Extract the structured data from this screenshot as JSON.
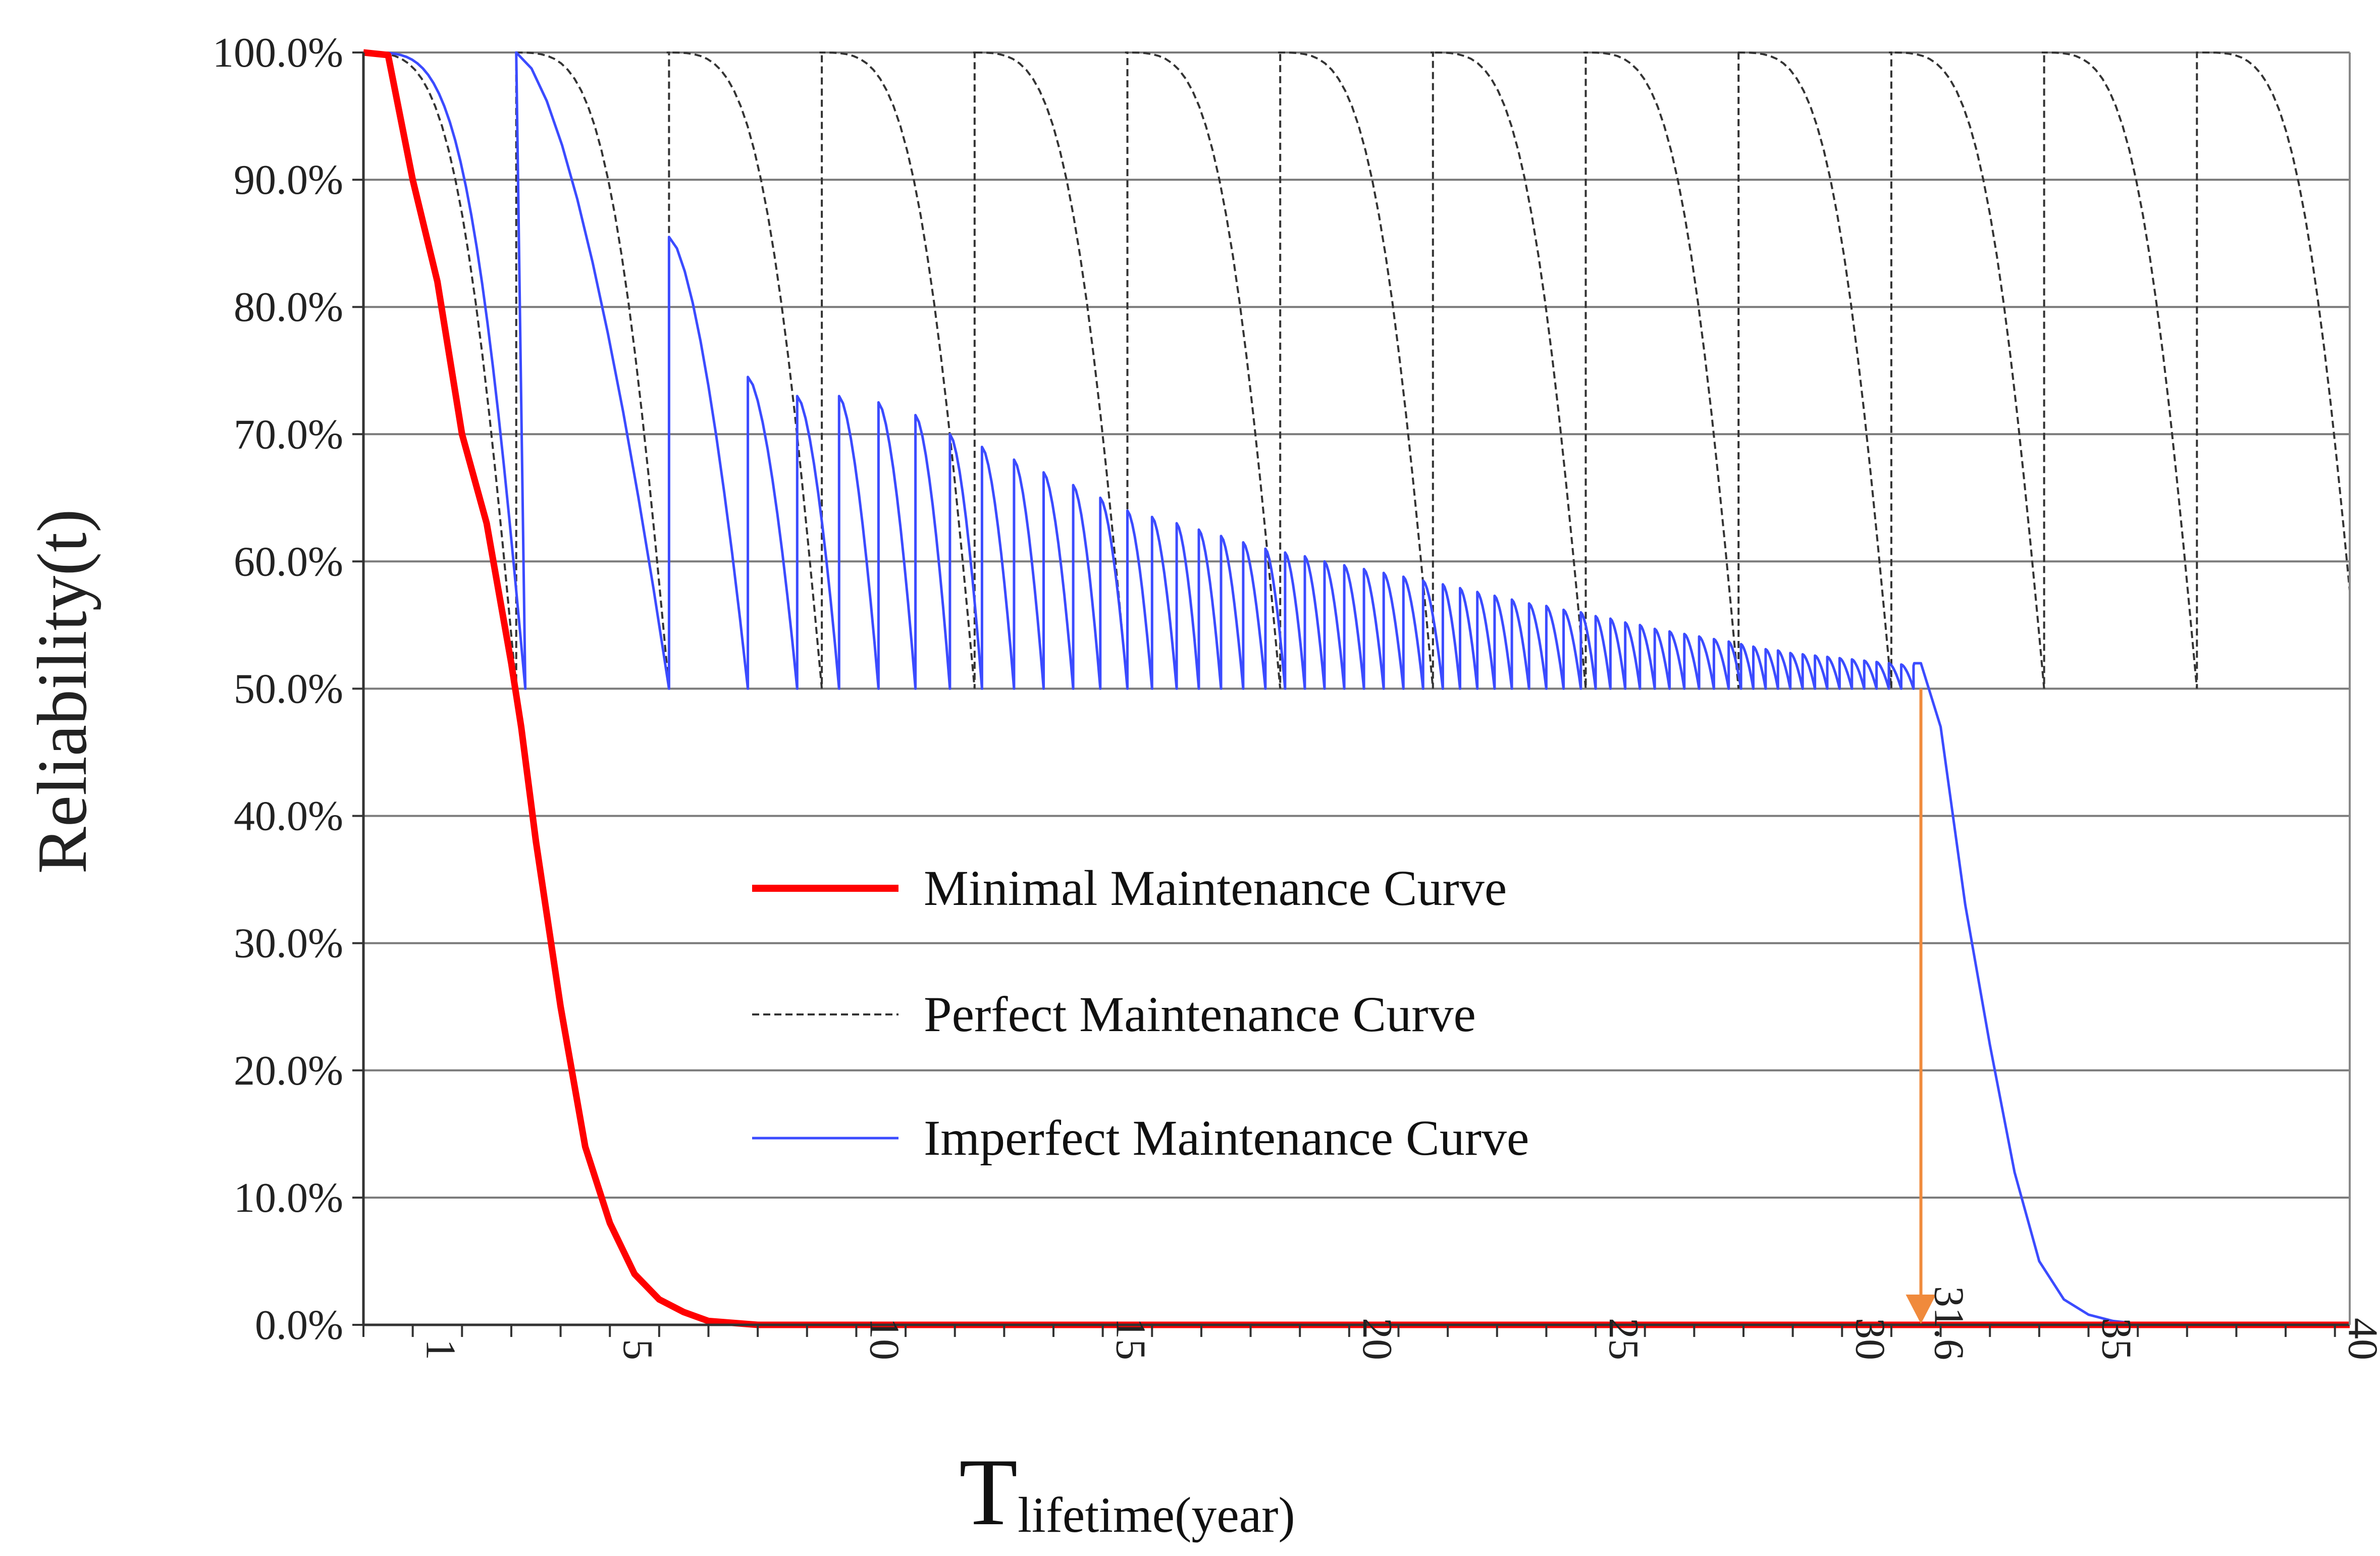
{
  "chart_data": {
    "type": "line",
    "title": "",
    "ylabel": "Reliability(t)",
    "xlabel": {
      "main": "T",
      "subscript": "lifetime",
      "suffix": "(year)"
    },
    "xlim": [
      0,
      40.3
    ],
    "ylim": [
      0,
      1
    ],
    "grid": true,
    "yticks": [
      {
        "value": 0.0,
        "label": "0.0%"
      },
      {
        "value": 0.1,
        "label": "10.0%"
      },
      {
        "value": 0.2,
        "label": "20.0%"
      },
      {
        "value": 0.3,
        "label": "30.0%"
      },
      {
        "value": 0.4,
        "label": "40.0%"
      },
      {
        "value": 0.5,
        "label": "50.0%"
      },
      {
        "value": 0.6,
        "label": "60.0%"
      },
      {
        "value": 0.7,
        "label": "70.0%"
      },
      {
        "value": 0.8,
        "label": "80.0%"
      },
      {
        "value": 0.9,
        "label": "90.0%"
      },
      {
        "value": 1.0,
        "label": "100.0%"
      }
    ],
    "xticks": [
      {
        "value": 1,
        "label": "1"
      },
      {
        "value": 5,
        "label": "5"
      },
      {
        "value": 10,
        "label": "10"
      },
      {
        "value": 15,
        "label": "15"
      },
      {
        "value": 20,
        "label": "20"
      },
      {
        "value": 25,
        "label": "25"
      },
      {
        "value": 30,
        "label": "30"
      },
      {
        "value": 31.6,
        "label": "31.6"
      },
      {
        "value": 35,
        "label": "35"
      },
      {
        "value": 40,
        "label": "40"
      }
    ],
    "legend": {
      "placement": "center",
      "entries": [
        {
          "key": "minimal",
          "label": "Minimal Maintenance Curve"
        },
        {
          "key": "perfect",
          "label": "Perfect Maintenance Curve"
        },
        {
          "key": "imperfect",
          "label": "Imperfect Maintenance Curve"
        }
      ]
    },
    "weibull": {
      "eta": 3.6,
      "beta": 4.0
    },
    "threshold": 0.5,
    "annotation": {
      "x": 31.6,
      "from_y": 0.5,
      "to_y": 0.0,
      "color": "#f08a3c"
    },
    "series": [
      {
        "key": "minimal",
        "name": "Minimal Maintenance Curve",
        "color": "#ff0000",
        "style": "solid-thick",
        "x": [
          0,
          0.5,
          1,
          1.5,
          2,
          2.5,
          3,
          3.2,
          3.5,
          4,
          4.5,
          5,
          5.5,
          6,
          6.5,
          7,
          8,
          10,
          20,
          30,
          40.3
        ],
        "values": [
          1.0,
          0.998,
          0.9,
          0.82,
          0.7,
          0.63,
          0.52,
          0.47,
          0.38,
          0.25,
          0.14,
          0.08,
          0.04,
          0.02,
          0.01,
          0.003,
          0,
          0,
          0,
          0,
          0
        ]
      },
      {
        "key": "perfect",
        "name": "Perfect Maintenance Curve",
        "color": "#333333",
        "style": "dashed",
        "restore_times": [
          3.1,
          6.2,
          9.3,
          12.4,
          15.5,
          18.6,
          21.7,
          24.8,
          27.9,
          31.0,
          34.1,
          37.2
        ],
        "min_value": 0.5,
        "max_value": 1.0
      },
      {
        "key": "imperfect",
        "name": "Imperfect Maintenance Curve",
        "color": "#3b4bff",
        "style": "solid-thin",
        "restore_times": [
          3.1,
          6.2,
          7.8,
          8.8,
          9.65,
          10.45,
          11.2,
          11.9,
          12.55,
          13.2,
          13.8,
          14.4,
          14.95,
          15.5,
          16.0,
          16.5,
          16.95,
          17.4,
          17.85,
          18.3,
          18.7,
          19.1,
          19.5,
          19.9,
          20.3,
          20.7,
          21.1,
          21.5,
          21.9,
          22.25,
          22.6,
          22.95,
          23.3,
          23.65,
          24.0,
          24.35,
          24.7,
          25.0,
          25.3,
          25.6,
          25.9,
          26.2,
          26.5,
          26.8,
          27.1,
          27.4,
          27.7,
          27.95,
          28.2,
          28.45,
          28.7,
          28.95,
          29.2,
          29.45,
          29.7,
          29.95,
          30.2,
          30.45,
          30.7,
          30.95,
          31.2,
          31.45
        ],
        "peaks": [
          1.0,
          0.855,
          0.745,
          0.73,
          0.73,
          0.725,
          0.715,
          0.7,
          0.69,
          0.68,
          0.67,
          0.66,
          0.65,
          0.64,
          0.635,
          0.63,
          0.625,
          0.62,
          0.615,
          0.61,
          0.607,
          0.604,
          0.6,
          0.597,
          0.594,
          0.591,
          0.588,
          0.585,
          0.582,
          0.579,
          0.576,
          0.573,
          0.57,
          0.567,
          0.565,
          0.562,
          0.56,
          0.557,
          0.555,
          0.552,
          0.55,
          0.547,
          0.545,
          0.543,
          0.541,
          0.539,
          0.537,
          0.535,
          0.533,
          0.531,
          0.53,
          0.528,
          0.527,
          0.526,
          0.525,
          0.524,
          0.523,
          0.522,
          0.521,
          0.52,
          0.519,
          0.518
        ],
        "end_time": 31.6,
        "tail": {
          "x": [
            31.6,
            32.0,
            32.5,
            33.0,
            33.5,
            34.0,
            34.5,
            35.0,
            35.5,
            36.0,
            40.3
          ],
          "values": [
            0.52,
            0.47,
            0.33,
            0.22,
            0.12,
            0.05,
            0.02,
            0.008,
            0.003,
            0.001,
            0.0
          ]
        }
      }
    ]
  }
}
